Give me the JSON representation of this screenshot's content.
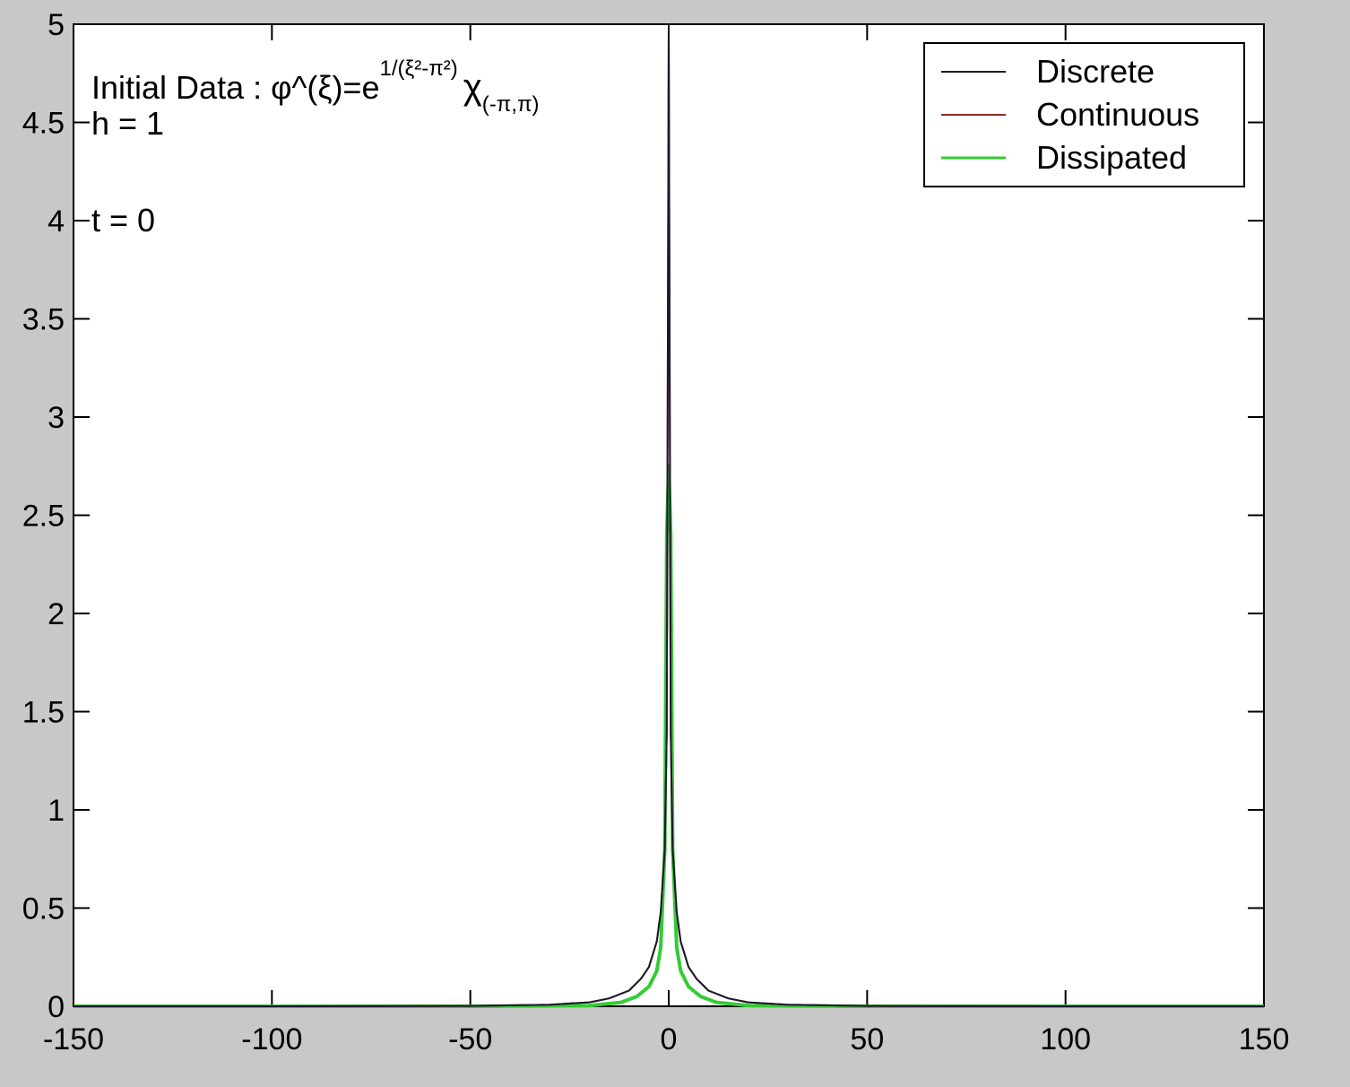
{
  "chart_data": {
    "type": "line",
    "title": "",
    "xlabel": "",
    "ylabel": "",
    "xlim": [
      -150,
      150
    ],
    "ylim": [
      0,
      5
    ],
    "x_ticks": [
      -150,
      -100,
      -50,
      0,
      50,
      100,
      150
    ],
    "y_ticks": [
      0,
      0.5,
      1,
      1.5,
      2,
      2.5,
      3,
      3.5,
      4,
      4.5,
      5
    ],
    "x_tick_labels": [
      "-150",
      "-100",
      "-50",
      "0",
      "50",
      "100",
      "150"
    ],
    "y_tick_labels": [
      "0",
      "0.5",
      "1",
      "1.5",
      "2",
      "2.5",
      "3",
      "3.5",
      "4",
      "4.5",
      "5"
    ],
    "grid": false,
    "legend_position": "top-right",
    "annotations": {
      "initial_data_prefix": "Initial Data : ",
      "initial_data_formula": "φ^(ξ)=e",
      "exponent": "1/(ξ²-π²)",
      "chi": "χ",
      "chi_subscript": "(-π,π)",
      "h": "h = 1",
      "t": "t = 0"
    },
    "series": [
      {
        "name": "Discrete",
        "color": "#1a1a2e",
        "x": [
          -150,
          -100,
          -50,
          -30,
          -20,
          -15,
          -10,
          -7,
          -5,
          -3,
          -2,
          -1,
          -0.5,
          0,
          0.5,
          1,
          2,
          3,
          5,
          7,
          10,
          15,
          20,
          30,
          50,
          100,
          150
        ],
        "y": [
          0,
          0,
          0.002,
          0.008,
          0.02,
          0.04,
          0.08,
          0.14,
          0.2,
          0.33,
          0.48,
          0.8,
          1.4,
          5,
          1.4,
          0.8,
          0.48,
          0.33,
          0.2,
          0.14,
          0.08,
          0.04,
          0.02,
          0.008,
          0.002,
          0,
          0
        ]
      },
      {
        "name": "Continuous",
        "color": "#8b2a2a",
        "x": [
          -150,
          -100,
          -50,
          -30,
          -20,
          -15,
          -10,
          -7,
          -5,
          -3,
          -2,
          -1,
          -0.5,
          0,
          0.5,
          1,
          2,
          3,
          5,
          7,
          10,
          15,
          20,
          30,
          50,
          100,
          150
        ],
        "y": [
          0,
          0,
          0.002,
          0.008,
          0.02,
          0.04,
          0.08,
          0.14,
          0.2,
          0.33,
          0.48,
          0.8,
          1.4,
          5,
          1.4,
          0.8,
          0.48,
          0.33,
          0.2,
          0.14,
          0.08,
          0.04,
          0.02,
          0.008,
          0.002,
          0,
          0
        ]
      },
      {
        "name": "Dissipated",
        "color": "#33cc33",
        "x": [
          -150,
          -100,
          -50,
          -20,
          -12,
          -8,
          -5,
          -3,
          -2,
          -1,
          -0.5,
          0,
          0.5,
          1,
          2,
          3,
          5,
          8,
          12,
          20,
          50,
          100,
          150
        ],
        "y": [
          0,
          0,
          0,
          0.003,
          0.02,
          0.05,
          0.1,
          0.18,
          0.3,
          0.8,
          2.4,
          2.75,
          2.4,
          0.8,
          0.3,
          0.18,
          0.1,
          0.05,
          0.02,
          0.003,
          0,
          0,
          0
        ]
      }
    ]
  }
}
